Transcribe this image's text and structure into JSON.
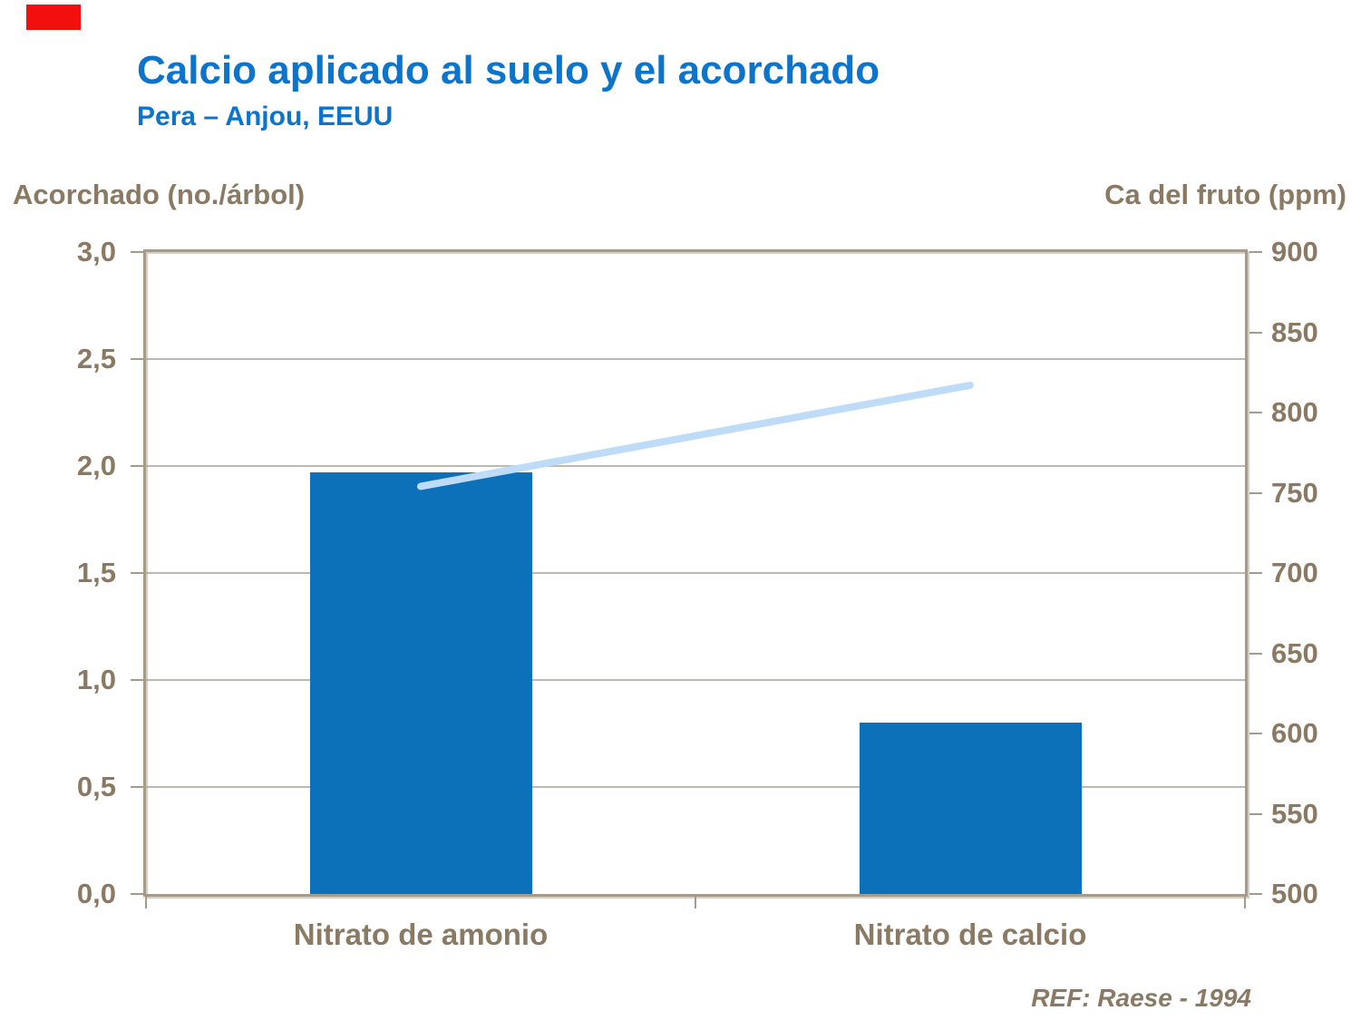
{
  "page": {
    "marker_color": "#f40f0f"
  },
  "chart_data": {
    "type": "combo",
    "title": "Calcio aplicado al suelo y el acorchado",
    "subtitle": "Pera – Anjou, EEUU",
    "ref": "REF: Raese - 1994",
    "categories": [
      "Nitrato de amonio",
      "Nitrato de calcio"
    ],
    "series": [
      {
        "name": "Acorchado (no./árbol)",
        "type": "bar",
        "axis": "left",
        "values": [
          1.97,
          0.8
        ],
        "color": "#0d71ba"
      },
      {
        "name": "Ca del fruto (ppm)",
        "type": "line",
        "axis": "right",
        "values": [
          754,
          817
        ],
        "color": "#bedcf8"
      }
    ],
    "left_axis": {
      "title": "Acorchado (no./árbol)",
      "min": 0,
      "max": 3,
      "step": 0.5,
      "tick_labels": [
        "3,0",
        "2,5",
        "2,0",
        "1,5",
        "1,0",
        "0,5",
        "0,0"
      ]
    },
    "right_axis": {
      "title": "Ca del fruto (ppm)",
      "min": 500,
      "max": 900,
      "step": 50,
      "tick_labels": [
        "900",
        "850",
        "800",
        "750",
        "700",
        "650",
        "600",
        "550",
        "500"
      ]
    },
    "grid": {
      "horizontal_at_left_values": [
        2.5,
        2,
        1.5,
        1,
        0.5
      ]
    },
    "legend": "none",
    "colors": {
      "title": "#0c74cb",
      "bar": "#0d71ba",
      "line": "#bedcf8",
      "axis_text": "#8a7a64",
      "frame": "#a69a8a",
      "frame_highlight": "#d6cec1",
      "gridline": "#a9a094",
      "marker": "#f40f0f"
    }
  }
}
